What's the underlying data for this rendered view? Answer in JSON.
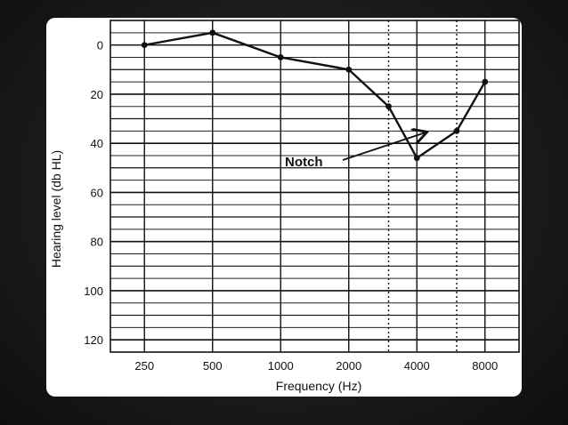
{
  "chart_data": {
    "type": "line",
    "xlabel": "Frequency (Hz)",
    "ylabel": "Hearing level (db HL)",
    "x_ticks": [
      "250",
      "500",
      "1000",
      "2000",
      "4000",
      "8000"
    ],
    "y_ticks": [
      "0",
      "20",
      "40",
      "60",
      "80",
      "100",
      "120"
    ],
    "ylim": [
      125,
      -10
    ],
    "y_inverted": true,
    "grid": true,
    "series": [
      {
        "x": [
          250,
          500,
          1000,
          2000,
          3000,
          4000,
          6000,
          8000
        ],
        "y": [
          0,
          -5,
          5,
          10,
          25,
          46,
          35,
          15
        ]
      }
    ],
    "dotted_lines_x": [
      3000,
      6000
    ],
    "annotations": [
      {
        "text": "Notch",
        "x": 4000,
        "y": 46
      }
    ],
    "line_color": "#111111"
  }
}
